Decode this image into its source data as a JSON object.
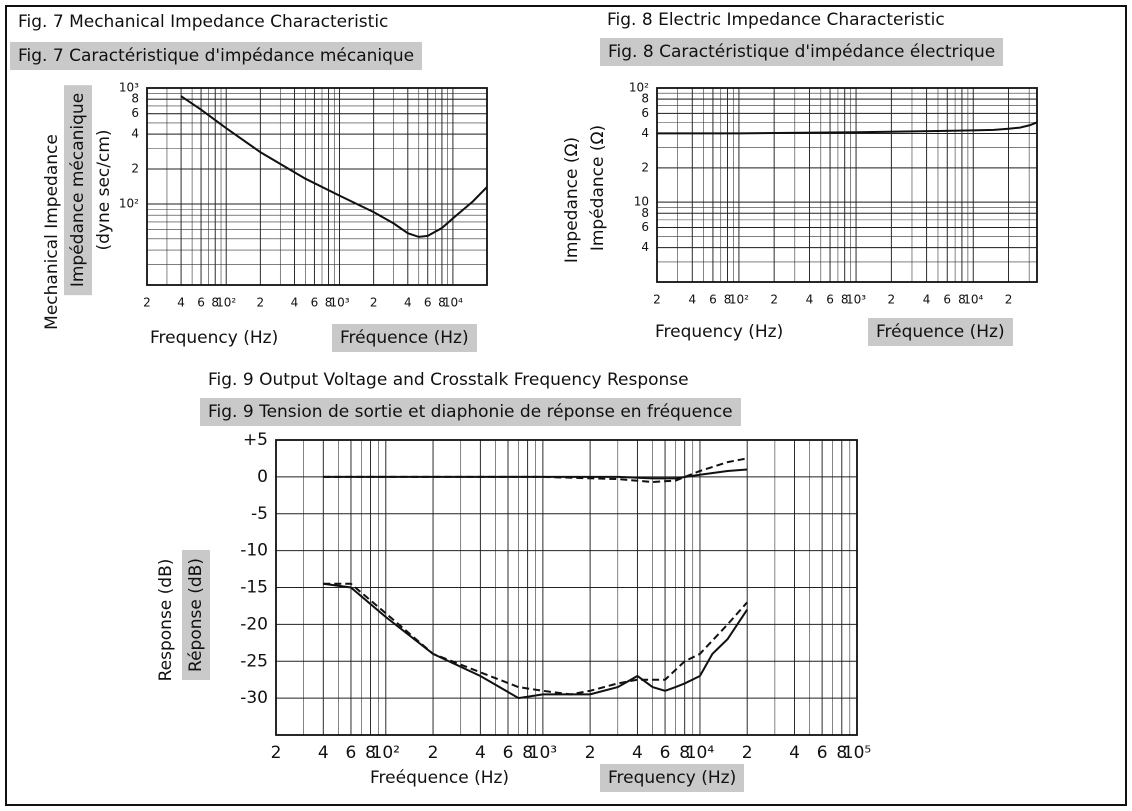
{
  "chart_data": [
    {
      "type": "line",
      "title": "Fig. 7  Mechanical Impedance Characteristic",
      "subtitle": "Fig. 7  Caractéristique d'impédance mécanique",
      "ylabel": [
        "Mechanical Impedance",
        "Impédance mécanique",
        "(dyne sec/cm)"
      ],
      "xlabel": [
        "Frequency (Hz)",
        "Fréquence (Hz)"
      ],
      "xscale": "log",
      "yscale": "log",
      "grid": true,
      "minor_grid": true,
      "xlim": [
        20,
        20000
      ],
      "ylim": [
        20,
        1000
      ],
      "xticks": [
        {
          "value": 20,
          "label": "2"
        },
        {
          "value": 40,
          "label": "4"
        },
        {
          "value": 60,
          "label": "6"
        },
        {
          "value": 80,
          "label": "8"
        },
        {
          "value": 100,
          "label": "10²"
        },
        {
          "value": 200,
          "label": "2"
        },
        {
          "value": 400,
          "label": "4"
        },
        {
          "value": 600,
          "label": "6"
        },
        {
          "value": 800,
          "label": "8"
        },
        {
          "value": 1000,
          "label": "10³"
        },
        {
          "value": 2000,
          "label": "2"
        },
        {
          "value": 4000,
          "label": "4"
        },
        {
          "value": 6000,
          "label": "6"
        },
        {
          "value": 8000,
          "label": "8"
        },
        {
          "value": 10000,
          "label": "10⁴"
        }
      ],
      "yticks": [
        {
          "value": 1000,
          "label": "10³"
        },
        {
          "value": 800,
          "label": "8"
        },
        {
          "value": 600,
          "label": "6"
        },
        {
          "value": 400,
          "label": "4"
        },
        {
          "value": 200,
          "label": "2"
        },
        {
          "value": 100,
          "label": "10²"
        }
      ],
      "series": [
        {
          "color": "#111111",
          "dash": false,
          "x": [
            40,
            60,
            100,
            200,
            500,
            1000,
            2000,
            3000,
            4000,
            5000,
            6000,
            8000,
            10000,
            15000,
            20000
          ],
          "values": [
            850,
            650,
            450,
            280,
            165,
            118,
            85,
            68,
            56,
            52,
            53,
            62,
            75,
            105,
            140
          ]
        }
      ]
    },
    {
      "type": "line",
      "title": "Fig. 8  Electric Impedance Characteristic",
      "subtitle": "Fig. 8  Caractéristique d'impédance électrique",
      "ylabel": [
        "Impedance (Ω)",
        "Impédance (Ω)"
      ],
      "xlabel": [
        "Frequency (Hz)",
        "Fréquence (Hz)"
      ],
      "xscale": "log",
      "yscale": "log",
      "grid": true,
      "minor_grid": true,
      "xlim": [
        20,
        35000
      ],
      "ylim": [
        2,
        100
      ],
      "xticks": [
        {
          "value": 20,
          "label": "2"
        },
        {
          "value": 40,
          "label": "4"
        },
        {
          "value": 60,
          "label": "6"
        },
        {
          "value": 80,
          "label": "8"
        },
        {
          "value": 100,
          "label": "10²"
        },
        {
          "value": 200,
          "label": "2"
        },
        {
          "value": 400,
          "label": "4"
        },
        {
          "value": 600,
          "label": "6"
        },
        {
          "value": 800,
          "label": "8"
        },
        {
          "value": 1000,
          "label": "10³"
        },
        {
          "value": 2000,
          "label": "2"
        },
        {
          "value": 4000,
          "label": "4"
        },
        {
          "value": 6000,
          "label": "6"
        },
        {
          "value": 8000,
          "label": "8"
        },
        {
          "value": 10000,
          "label": "10⁴"
        },
        {
          "value": 20000,
          "label": "2"
        }
      ],
      "yticks": [
        {
          "value": 100,
          "label": "10²"
        },
        {
          "value": 80,
          "label": "8"
        },
        {
          "value": 60,
          "label": "6"
        },
        {
          "value": 40,
          "label": "4"
        },
        {
          "value": 20,
          "label": "2"
        },
        10,
        {
          "value": 8,
          "label": "8"
        },
        {
          "value": 6,
          "label": "6"
        },
        {
          "value": 4,
          "label": "4"
        }
      ],
      "series": [
        {
          "color": "#111111",
          "dash": false,
          "x": [
            20,
            100,
            1000,
            5000,
            10000,
            15000,
            20000,
            25000,
            30000,
            35000
          ],
          "values": [
            40,
            40,
            41,
            42,
            42.5,
            43,
            44,
            45,
            47,
            50
          ]
        }
      ]
    },
    {
      "type": "line",
      "title": "Fig. 9  Output Voltage and Crosstalk Frequency Response",
      "subtitle": "Fig. 9  Tension de sortie et diaphonie de réponse en fréquence",
      "ylabel": [
        "Response (dB)",
        "Réponse (dB)"
      ],
      "xlabel": [
        "Freéquence (Hz)",
        "Frequency (Hz)"
      ],
      "xscale": "log",
      "yscale": "linear",
      "grid": true,
      "minor_grid": true,
      "xlim": [
        20,
        100000
      ],
      "ylim": [
        -35,
        5
      ],
      "xticks": [
        {
          "value": 20,
          "label": "2"
        },
        {
          "value": 40,
          "label": "4"
        },
        {
          "value": 60,
          "label": "6"
        },
        {
          "value": 80,
          "label": "8"
        },
        {
          "value": 100,
          "label": "10²"
        },
        {
          "value": 200,
          "label": "2"
        },
        {
          "value": 400,
          "label": "4"
        },
        {
          "value": 600,
          "label": "6"
        },
        {
          "value": 800,
          "label": "8"
        },
        {
          "value": 1000,
          "label": "10³"
        },
        {
          "value": 2000,
          "label": "2"
        },
        {
          "value": 4000,
          "label": "4"
        },
        {
          "value": 6000,
          "label": "6"
        },
        {
          "value": 8000,
          "label": "8"
        },
        {
          "value": 10000,
          "label": "10⁴"
        },
        {
          "value": 20000,
          "label": "2"
        },
        {
          "value": 40000,
          "label": "4"
        },
        {
          "value": 60000,
          "label": "6"
        },
        {
          "value": 80000,
          "label": "8"
        },
        {
          "value": 100000,
          "label": "10⁵"
        }
      ],
      "yticks": [
        {
          "value": 5,
          "label": "+5"
        },
        0,
        -5,
        -10,
        -15,
        -20,
        -25,
        -30
      ],
      "series": [
        {
          "color": "#111111",
          "dash": false,
          "x": [
            40,
            1000,
            3000,
            5000,
            7000,
            10000,
            15000,
            20000
          ],
          "values": [
            0,
            0,
            0,
            -0.2,
            -0.2,
            0.3,
            0.8,
            1
          ]
        },
        {
          "color": "#111111",
          "dash": true,
          "x": [
            40,
            1000,
            3000,
            5000,
            7000,
            10000,
            15000,
            20000
          ],
          "values": [
            0,
            0,
            -0.3,
            -0.7,
            -0.5,
            0.8,
            2,
            2.5
          ]
        },
        {
          "color": "#111111",
          "dash": false,
          "x": [
            40,
            60,
            100,
            200,
            400,
            700,
            1000,
            1500,
            2000,
            3000,
            4000,
            5000,
            6000,
            7000,
            8000,
            10000,
            12000,
            15000,
            20000
          ],
          "values": [
            -14.5,
            -15,
            -19,
            -24,
            -27,
            -30,
            -29.5,
            -29.5,
            -29.5,
            -28.5,
            -27,
            -28.5,
            -29,
            -28.5,
            -28,
            -27,
            -24,
            -22,
            -18
          ]
        },
        {
          "color": "#111111",
          "dash": true,
          "x": [
            40,
            60,
            100,
            200,
            400,
            700,
            1000,
            1500,
            2000,
            3000,
            4000,
            6000,
            8000,
            10000,
            15000,
            20000
          ],
          "values": [
            -14.5,
            -14.5,
            -18.5,
            -24,
            -26.5,
            -28.5,
            -29,
            -29.5,
            -29,
            -28,
            -27.5,
            -27.5,
            -25,
            -24,
            -20,
            -17
          ]
        }
      ]
    }
  ]
}
